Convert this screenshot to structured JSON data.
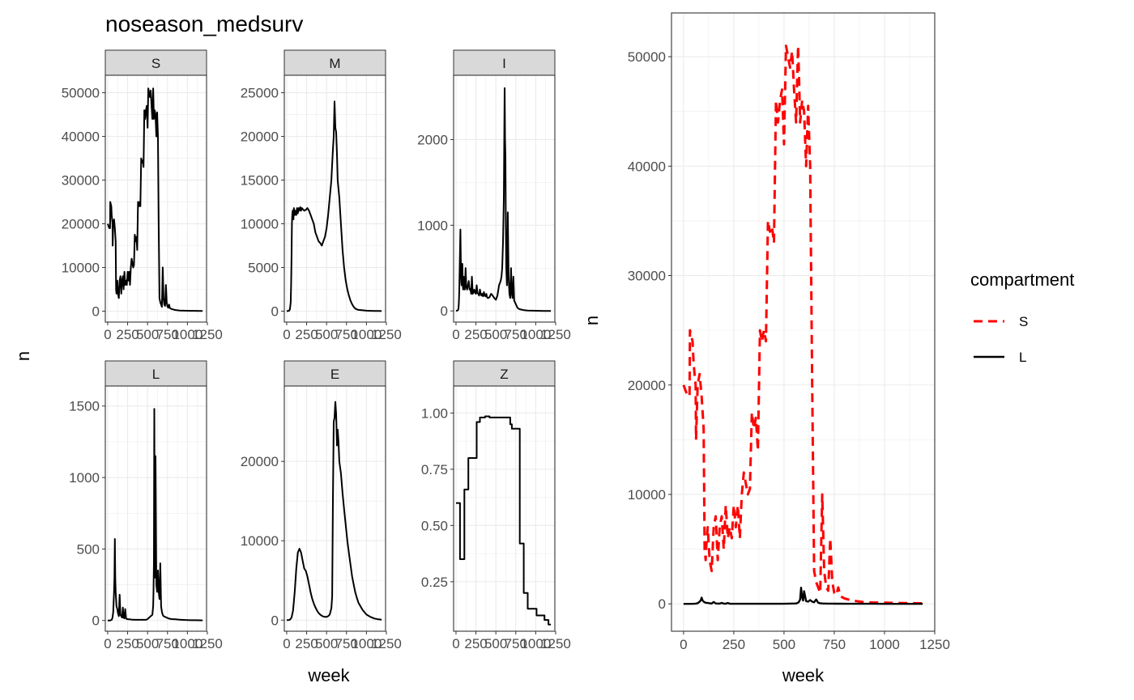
{
  "title": "noseason_medsurv",
  "chart_data": [
    {
      "type": "line",
      "layout": "facet-grid",
      "xlabel": "week",
      "ylabel": "n",
      "x_ticks": [
        0,
        250,
        500,
        750,
        1000,
        1250
      ],
      "x_tick_labels": [
        "0",
        "250",
        "500",
        "750",
        "1000",
        "1250"
      ],
      "xlim": [
        -30,
        1240
      ],
      "grid": true,
      "facets": [
        {
          "name": "S",
          "ylim": [
            -2500,
            54000
          ],
          "y_ticks": [
            0,
            10000,
            20000,
            30000,
            40000,
            50000
          ],
          "y_tick_labels": [
            "0",
            "10000",
            "20000",
            "30000",
            "40000",
            "50000"
          ],
          "x": [
            0,
            20,
            30,
            32,
            45,
            50,
            55,
            60,
            62,
            70,
            80,
            90,
            100,
            105,
            110,
            112,
            120,
            130,
            140,
            150,
            160,
            170,
            180,
            190,
            200,
            210,
            220,
            230,
            240,
            250,
            260,
            270,
            280,
            290,
            300,
            310,
            320,
            330,
            340,
            350,
            360,
            370,
            380,
            390,
            400,
            410,
            420,
            430,
            440,
            450,
            460,
            470,
            480,
            490,
            500,
            510,
            520,
            530,
            540,
            550,
            560,
            570,
            575,
            580,
            590,
            600,
            610,
            620,
            630,
            640,
            650,
            660,
            670,
            680,
            690,
            700,
            710,
            720,
            730,
            740,
            750,
            760,
            770,
            780,
            790,
            800,
            820,
            840,
            860,
            880,
            900,
            950,
            1000,
            1050,
            1100,
            1150,
            1190
          ],
          "y": [
            20000,
            19000,
            19000,
            25000,
            24000,
            22000,
            21000,
            20000,
            15000,
            20000,
            21000,
            19000,
            16000,
            5000,
            4000,
            5000,
            7000,
            4000,
            3000,
            7000,
            8000,
            4000,
            7000,
            8000,
            5000,
            9000,
            6000,
            7000,
            6000,
            9000,
            7000,
            9000,
            6000,
            10000,
            12000,
            11000,
            10000,
            10500,
            17500,
            16000,
            17000,
            14000,
            25000,
            24000,
            25000,
            24000,
            35000,
            34000,
            34500,
            33000,
            46000,
            44000,
            46000,
            47000,
            42000,
            51000,
            50000,
            49000,
            50500,
            47000,
            44000,
            51000,
            48000,
            44000,
            46000,
            45000,
            40000,
            45500,
            40000,
            20000,
            3000,
            2000,
            1500,
            1000,
            10000,
            3000,
            1500,
            1200,
            6000,
            2000,
            1000,
            800,
            1500,
            700,
            600,
            500,
            400,
            300,
            250,
            200,
            150,
            120,
            100,
            80,
            70,
            60,
            50
          ]
        },
        {
          "name": "M",
          "ylim": [
            -1250,
            27000
          ],
          "y_ticks": [
            0,
            5000,
            10000,
            15000,
            20000,
            25000
          ],
          "y_tick_labels": [
            "0",
            "5000",
            "10000",
            "15000",
            "20000",
            "25000"
          ],
          "x": [
            0,
            30,
            40,
            50,
            55,
            60,
            65,
            70,
            75,
            80,
            85,
            90,
            100,
            110,
            120,
            130,
            140,
            150,
            160,
            170,
            180,
            190,
            200,
            220,
            240,
            260,
            280,
            300,
            320,
            340,
            360,
            380,
            400,
            420,
            440,
            460,
            480,
            500,
            520,
            540,
            560,
            580,
            590,
            600,
            610,
            620,
            630,
            640,
            660,
            680,
            700,
            720,
            740,
            760,
            780,
            800,
            820,
            840,
            860,
            880,
            900,
            950,
            1000,
            1050,
            1100,
            1150,
            1190
          ],
          "y": [
            0,
            50,
            200,
            1000,
            3000,
            6000,
            10000,
            11000,
            11500,
            11000,
            10500,
            11800,
            11000,
            11500,
            11000,
            11800,
            11200,
            11800,
            11500,
            11900,
            11500,
            11800,
            11700,
            11500,
            11600,
            11800,
            11500,
            11000,
            10500,
            10000,
            9000,
            8500,
            8000,
            7800,
            7500,
            8000,
            8500,
            9500,
            11000,
            13000,
            15000,
            18500,
            20000,
            24000,
            21000,
            20500,
            18000,
            15000,
            13000,
            10000,
            7000,
            5000,
            3500,
            2500,
            1800,
            1200,
            800,
            500,
            300,
            200,
            150,
            100,
            60,
            40,
            30,
            20,
            10
          ]
        },
        {
          "name": "I",
          "ylim": [
            -130,
            2750
          ],
          "y_ticks": [
            0,
            1000,
            2000
          ],
          "y_tick_labels": [
            "0",
            "1000",
            "2000"
          ],
          "x": [
            0,
            20,
            30,
            35,
            40,
            45,
            50,
            55,
            60,
            65,
            70,
            75,
            80,
            85,
            90,
            95,
            100,
            110,
            120,
            130,
            140,
            150,
            160,
            170,
            180,
            190,
            200,
            210,
            220,
            230,
            240,
            250,
            260,
            270,
            280,
            290,
            300,
            310,
            320,
            330,
            340,
            350,
            360,
            370,
            380,
            390,
            400,
            420,
            440,
            460,
            480,
            500,
            520,
            540,
            560,
            570,
            580,
            590,
            600,
            610,
            615,
            620,
            625,
            630,
            640,
            650,
            660,
            670,
            680,
            690,
            700,
            710,
            720,
            730,
            740,
            750,
            760,
            770,
            780,
            800,
            850,
            900,
            950,
            1000,
            1050,
            1100,
            1190
          ],
          "y": [
            0,
            5,
            20,
            80,
            200,
            450,
            700,
            950,
            600,
            350,
            300,
            400,
            550,
            300,
            250,
            400,
            350,
            250,
            500,
            280,
            250,
            300,
            350,
            250,
            260,
            200,
            400,
            200,
            220,
            250,
            210,
            200,
            300,
            210,
            200,
            180,
            250,
            200,
            180,
            200,
            170,
            220,
            180,
            170,
            200,
            160,
            150,
            160,
            200,
            180,
            150,
            130,
            180,
            300,
            350,
            400,
            500,
            800,
            1300,
            2600,
            2000,
            1800,
            1000,
            500,
            300,
            1150,
            400,
            200,
            150,
            500,
            200,
            150,
            400,
            120,
            100,
            80,
            60,
            40,
            30,
            20,
            10,
            5,
            3,
            2,
            1,
            0,
            0
          ]
        },
        {
          "name": "L",
          "ylim": [
            -75,
            1640
          ],
          "y_ticks": [
            0,
            500,
            1000,
            1500
          ],
          "y_tick_labels": [
            "0",
            "500",
            "1000",
            "1500"
          ],
          "x": [
            0,
            30,
            50,
            60,
            70,
            80,
            85,
            90,
            95,
            100,
            105,
            110,
            120,
            130,
            140,
            150,
            160,
            170,
            180,
            190,
            200,
            210,
            220,
            230,
            240,
            250,
            260,
            280,
            300,
            320,
            340,
            360,
            380,
            400,
            420,
            440,
            460,
            480,
            500,
            520,
            540,
            560,
            570,
            575,
            580,
            585,
            590,
            595,
            600,
            610,
            620,
            630,
            640,
            650,
            660,
            670,
            680,
            690,
            700,
            720,
            740,
            760,
            780,
            800,
            850,
            900,
            950,
            1000,
            1050,
            1100,
            1190
          ],
          "y": [
            0,
            0,
            5,
            20,
            60,
            200,
            300,
            570,
            300,
            200,
            150,
            100,
            80,
            50,
            30,
            180,
            40,
            30,
            20,
            90,
            20,
            15,
            80,
            15,
            10,
            10,
            8,
            8,
            6,
            6,
            5,
            5,
            5,
            5,
            5,
            5,
            5,
            5,
            10,
            20,
            30,
            40,
            100,
            200,
            400,
            1480,
            600,
            300,
            1150,
            250,
            200,
            350,
            200,
            150,
            400,
            100,
            60,
            40,
            30,
            25,
            20,
            15,
            12,
            10,
            8,
            6,
            4,
            3,
            2,
            2,
            1
          ]
        },
        {
          "name": "E",
          "ylim": [
            -1400,
            29500
          ],
          "y_ticks": [
            0,
            10000,
            20000
          ],
          "y_tick_labels": [
            "0",
            "10000",
            "20000"
          ],
          "x": [
            0,
            20,
            40,
            60,
            80,
            100,
            120,
            140,
            160,
            180,
            200,
            220,
            240,
            260,
            280,
            300,
            320,
            340,
            360,
            380,
            400,
            420,
            440,
            460,
            480,
            500,
            520,
            540,
            560,
            570,
            580,
            590,
            600,
            610,
            620,
            630,
            640,
            650,
            660,
            680,
            700,
            720,
            740,
            760,
            780,
            800,
            820,
            840,
            860,
            880,
            900,
            950,
            1000,
            1050,
            1100,
            1150,
            1190
          ],
          "y": [
            0,
            0,
            50,
            300,
            1200,
            3500,
            6500,
            8500,
            9000,
            8500,
            7500,
            6500,
            6200,
            5500,
            4500,
            3500,
            2700,
            2100,
            1600,
            1200,
            900,
            700,
            550,
            450,
            400,
            400,
            500,
            700,
            1500,
            3000,
            15000,
            25000,
            25500,
            27500,
            26000,
            22000,
            24000,
            22500,
            20000,
            18500,
            16000,
            14000,
            12000,
            10000,
            8500,
            7000,
            5500,
            4500,
            3500,
            2800,
            2200,
            1300,
            700,
            400,
            200,
            100,
            50
          ]
        },
        {
          "name": "Z",
          "ylim": [
            0.03,
            1.12
          ],
          "y_ticks": [
            0.25,
            0.5,
            0.75,
            1.0
          ],
          "y_tick_labels": [
            "0.25",
            "0.50",
            "0.75",
            "1.00"
          ],
          "x": [
            0,
            50,
            50,
            105,
            105,
            155,
            155,
            260,
            260,
            300,
            300,
            365,
            365,
            420,
            420,
            680,
            680,
            700,
            700,
            800,
            800,
            850,
            850,
            900,
            900,
            960,
            960,
            1010,
            1010,
            1060,
            1060,
            1110,
            1110,
            1160,
            1160,
            1190
          ],
          "y": [
            0.6,
            0.6,
            0.35,
            0.35,
            0.66,
            0.66,
            0.8,
            0.8,
            0.96,
            0.96,
            0.98,
            0.98,
            0.985,
            0.985,
            0.98,
            0.98,
            0.95,
            0.95,
            0.93,
            0.93,
            0.42,
            0.42,
            0.2,
            0.2,
            0.13,
            0.13,
            0.13,
            0.13,
            0.1,
            0.1,
            0.1,
            0.1,
            0.08,
            0.08,
            0.06,
            0.06
          ]
        }
      ]
    },
    {
      "type": "line",
      "xlabel": "week",
      "ylabel": "n",
      "x_ticks": [
        0,
        250,
        500,
        750,
        1000,
        1250
      ],
      "x_tick_labels": [
        "0",
        "250",
        "500",
        "750",
        "1000",
        "1250"
      ],
      "xlim": [
        -60,
        1250
      ],
      "ylim": [
        -2500,
        54000
      ],
      "y_ticks": [
        0,
        10000,
        20000,
        30000,
        40000,
        50000
      ],
      "y_tick_labels": [
        "0",
        "10000",
        "20000",
        "30000",
        "40000",
        "50000"
      ],
      "grid": true,
      "legend": {
        "title": "compartment",
        "position": "right"
      },
      "series": [
        {
          "name": "S",
          "color": "#ff0000",
          "dash": "dashed"
        },
        {
          "name": "L",
          "color": "#000000",
          "dash": "solid"
        }
      ]
    }
  ]
}
